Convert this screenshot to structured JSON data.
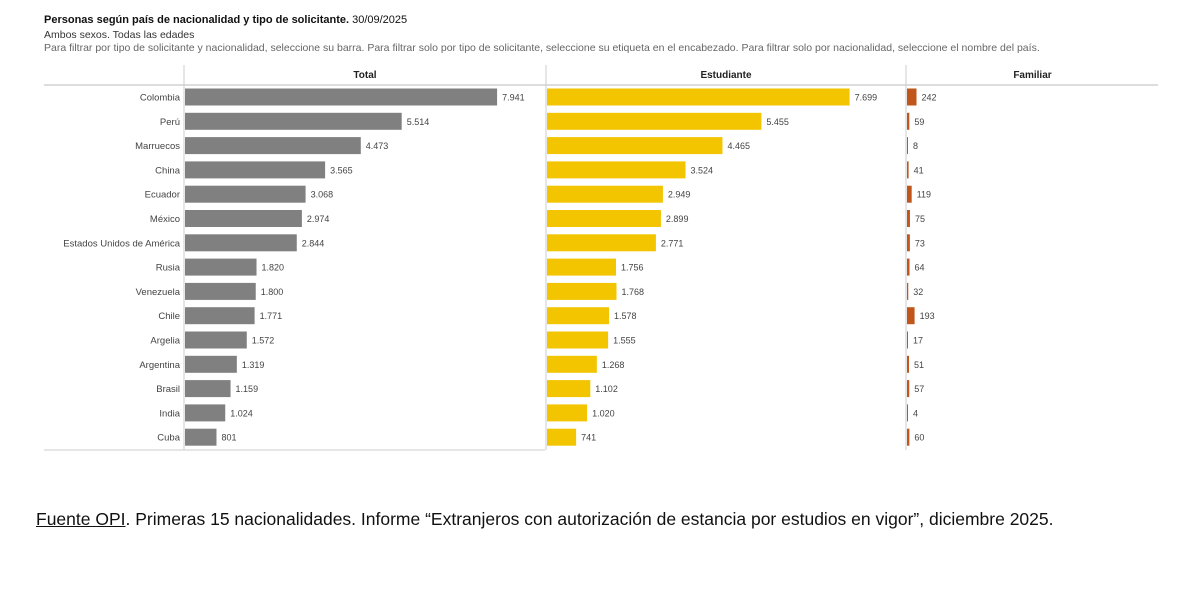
{
  "header": {
    "title_bold": "Personas según país de nacionalidad y tipo de solicitante.",
    "title_date": "30/09/2025",
    "subtitle": "Ambos sexos. Todas las edades",
    "instructions": "Para filtrar por tipo de solicitante y nacionalidad, seleccione su barra. Para filtrar solo por tipo de solicitante, seleccione su etiqueta en el encabezado. Para filtrar solo por nacionalidad, seleccione el nombre del país."
  },
  "chart_data": {
    "type": "bar",
    "orientation": "horizontal",
    "categories": [
      "Colombia",
      "Perú",
      "Marruecos",
      "China",
      "Ecuador",
      "México",
      "Estados Unidos de América",
      "Rusia",
      "Venezuela",
      "Chile",
      "Argelia",
      "Argentina",
      "Brasil",
      "India",
      "Cuba"
    ],
    "series": [
      {
        "name": "Total",
        "color": "#808080",
        "values": [
          7941,
          5514,
          4473,
          3565,
          3068,
          2974,
          2844,
          1820,
          1800,
          1771,
          1572,
          1319,
          1159,
          1024,
          801
        ],
        "labels": [
          "7.941",
          "5.514",
          "4.473",
          "3.565",
          "3.068",
          "2.974",
          "2.844",
          "1.820",
          "1.800",
          "1.771",
          "1.572",
          "1.319",
          "1.159",
          "1.024",
          "801"
        ]
      },
      {
        "name": "Estudiante",
        "color": "#F2C500",
        "values": [
          7699,
          5455,
          4465,
          3524,
          2949,
          2899,
          2771,
          1756,
          1768,
          1578,
          1555,
          1268,
          1102,
          1020,
          741
        ],
        "labels": [
          "7.699",
          "5.455",
          "4.465",
          "3.524",
          "2.949",
          "2.899",
          "2.771",
          "1.756",
          "1.768",
          "1.578",
          "1.555",
          "1.268",
          "1.102",
          "1.020",
          "741"
        ]
      },
      {
        "name": "Familiar",
        "color": "#C0561B",
        "values": [
          242,
          59,
          8,
          41,
          119,
          75,
          73,
          64,
          32,
          193,
          17,
          51,
          57,
          4,
          60
        ],
        "labels": [
          "242",
          "59",
          "8",
          "41",
          "119",
          "75",
          "73",
          "64",
          "32",
          "193",
          "17",
          "51",
          "57",
          "4",
          "60"
        ]
      }
    ],
    "grid": false,
    "legend": "panel headers"
  },
  "footer": {
    "source_link": "Fuente OPI",
    "text": ". Primeras 15 nacionalidades. Informe “Extranjeros con autorización de estancia por estudios en vigor”, diciembre 2025."
  }
}
